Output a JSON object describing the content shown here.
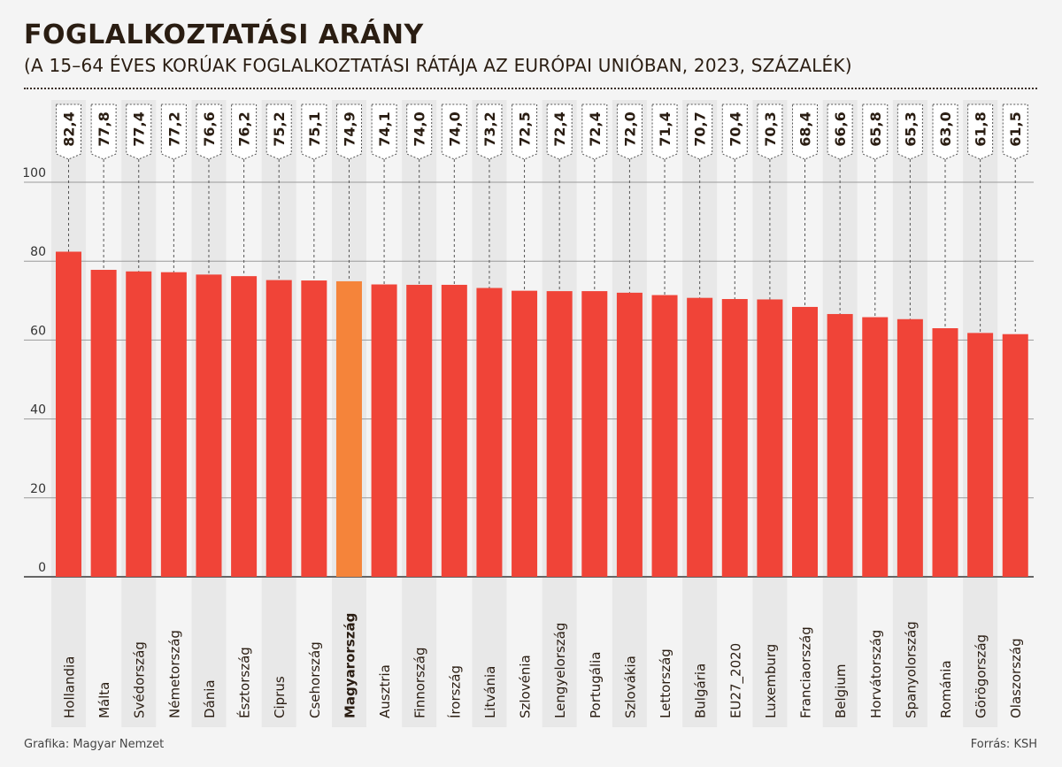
{
  "chart_data": {
    "type": "bar",
    "title": "FOGLALKOZTATÁSI ARÁNY",
    "subtitle": "(A 15–64 ÉVES KORÚAK FOGLALKOZTATÁSI RÁTÁJA AZ EURÓPAI UNIÓBAN, 2023, SZÁZALÉK)",
    "xlabel": "",
    "ylabel": "",
    "ylim": [
      0,
      100
    ],
    "yticks": [
      0,
      20,
      40,
      60,
      80,
      100
    ],
    "ytick_labels": [
      "0",
      "20",
      "40",
      "60",
      "80",
      "100"
    ],
    "grid": true,
    "highlight_category": "Magyarország",
    "categories": [
      "Hollandia",
      "Málta",
      "Svédország",
      "Németország",
      "Dánia",
      "Észtország",
      "Ciprus",
      "Csehország",
      "Magyarország",
      "Ausztria",
      "Finnország",
      "Írország",
      "Litvánia",
      "Szlovénia",
      "Lengyelország",
      "Portugália",
      "Szlovákia",
      "Lettország",
      "Bulgária",
      "EU27_2020",
      "Luxemburg",
      "Franciaország",
      "Belgium",
      "Horvátország",
      "Spanyolország",
      "Románia",
      "Görögország",
      "Olaszország"
    ],
    "values": [
      82.4,
      77.8,
      77.4,
      77.2,
      76.6,
      76.2,
      75.2,
      75.1,
      74.9,
      74.1,
      74.0,
      74.0,
      73.2,
      72.5,
      72.4,
      72.4,
      72.0,
      71.4,
      70.7,
      70.4,
      70.3,
      68.4,
      66.6,
      65.8,
      65.3,
      63.0,
      61.8,
      61.5
    ],
    "value_labels": [
      "82,4",
      "77,8",
      "77,4",
      "77,2",
      "76,6",
      "76,2",
      "75,2",
      "75,1",
      "74,9",
      "74,1",
      "74,0",
      "74,0",
      "73,2",
      "72,5",
      "72,4",
      "72,4",
      "72,0",
      "71,4",
      "70,7",
      "70,4",
      "70,3",
      "68,4",
      "66,6",
      "65,8",
      "65,3",
      "63,0",
      "61,8",
      "61,5"
    ]
  },
  "colors": {
    "bar": "#f04438",
    "highlight": "#f5843a",
    "stripe": "#e8e8e8",
    "background": "#f4f4f4",
    "text": "#2a1d12",
    "grid": "#9a9a9a"
  },
  "footer": {
    "credit": "Grafika: Magyar Nemzet",
    "source": "Forrás: KSH"
  }
}
